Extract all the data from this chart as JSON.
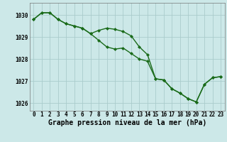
{
  "x": [
    0,
    1,
    2,
    3,
    4,
    5,
    6,
    7,
    8,
    9,
    10,
    11,
    12,
    13,
    14,
    15,
    16,
    17,
    18,
    19,
    20,
    21,
    22,
    23
  ],
  "series": [
    [
      1029.8,
      1030.1,
      1030.1,
      1029.8,
      1029.6,
      1029.5,
      1029.4,
      1029.15,
      1029.3,
      1029.4,
      1029.35,
      1029.25,
      1029.05,
      1028.55,
      1028.2,
      1027.1,
      1027.05,
      1026.65,
      1026.45,
      1026.2,
      1026.05,
      1026.85,
      1027.15,
      1027.2
    ],
    [
      1029.8,
      1030.1,
      1030.1,
      1029.8,
      1029.6,
      1029.5,
      1029.4,
      1029.15,
      1028.85,
      1028.55,
      1028.45,
      1028.5,
      1028.25,
      1028.0,
      1027.9,
      1027.1,
      1027.05,
      1026.65,
      1026.45,
      1026.2,
      1026.05,
      1026.85,
      1027.15,
      1027.2
    ]
  ],
  "ylim": [
    1025.65,
    1030.55
  ],
  "yticks": [
    1026,
    1027,
    1028,
    1029,
    1030
  ],
  "xlabel": "Graphe pression niveau de la mer (hPa)",
  "background_color": "#cce8e8",
  "grid_color": "#aacccc",
  "line_color": "#1a6b1a",
  "marker": "D",
  "markersize": 2.0,
  "linewidth": 1.0,
  "tick_fontsize": 5.5,
  "xlabel_fontsize": 7.0
}
